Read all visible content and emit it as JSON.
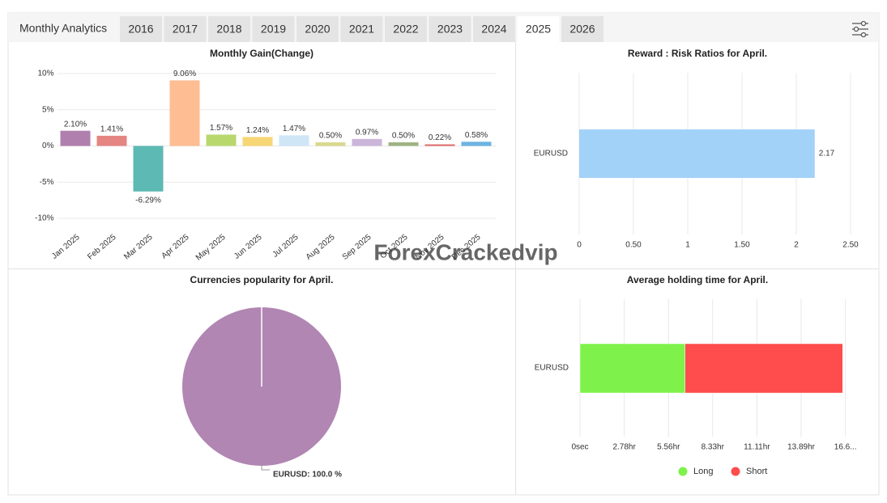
{
  "header": {
    "title": "Monthly Analytics",
    "tabs": [
      "2016",
      "2017",
      "2018",
      "2019",
      "2020",
      "2021",
      "2022",
      "2023",
      "2024",
      "2025",
      "2026"
    ],
    "selected_tab": "2025"
  },
  "watermark": "ForexCrackedvip",
  "chart_data": [
    {
      "type": "bar",
      "title": "Monthly Gain(Change)",
      "categories": [
        "Jan 2025",
        "Feb 2025",
        "Mar 2025",
        "Apr 2025",
        "May 2025",
        "Jun 2025",
        "Jul 2025",
        "Aug 2025",
        "Sep 2025",
        "Oct 2025",
        "Nov 2025",
        "Dec 2025"
      ],
      "values": [
        2.1,
        1.41,
        -6.29,
        9.06,
        1.57,
        1.24,
        1.47,
        0.5,
        0.97,
        0.5,
        0.22,
        0.58
      ],
      "value_labels": [
        "2.10%",
        "1.41%",
        "-6.29%",
        "9.06%",
        "1.57%",
        "1.24%",
        "1.47%",
        "0.50%",
        "0.97%",
        "0.50%",
        "0.22%",
        "0.58%"
      ],
      "colors": [
        "#b07fae",
        "#e58582",
        "#5db9b3",
        "#ffbd93",
        "#b8d86e",
        "#f6d675",
        "#cfe6f7",
        "#d9d98d",
        "#cbb5d9",
        "#9db381",
        "#e06868",
        "#6cb3e1"
      ],
      "ylim": [
        -10,
        10
      ],
      "yticks": [
        {
          "value": -10,
          "label": "-10%"
        },
        {
          "value": -5,
          "label": "-5%"
        },
        {
          "value": 0,
          "label": "0%"
        },
        {
          "value": 5,
          "label": "5%"
        },
        {
          "value": 10,
          "label": "10%"
        }
      ],
      "grid": true
    },
    {
      "type": "hbar",
      "title": "Reward : Risk Ratios for April.",
      "categories": [
        "EURUSD"
      ],
      "values": [
        2.17
      ],
      "color": "#a3d2f8",
      "xlim": [
        0,
        2.5
      ],
      "xticks": [
        0,
        {
          "value": 0.5,
          "label": "0.50"
        },
        1,
        {
          "value": 1.5,
          "label": "1.50"
        },
        2,
        {
          "value": 2.5,
          "label": "2.50"
        }
      ],
      "grid": true
    },
    {
      "type": "pie",
      "title": "Currencies popularity for April.",
      "categories": [
        "EURUSD"
      ],
      "values": [
        100
      ],
      "value_labels": [
        "EURUSD: 100.0 %"
      ],
      "colors": [
        "#b186b3"
      ]
    },
    {
      "type": "hbar",
      "title": "Average holding time for April.",
      "stacked": true,
      "categories": [
        "EURUSD"
      ],
      "series": [
        {
          "name": "Long",
          "color": "#7ef24a",
          "values": [
            6.6
          ]
        },
        {
          "name": "Short",
          "color": "#ff4c4c",
          "values": [
            9.9
          ]
        }
      ],
      "xlim": [
        0,
        17.5
      ],
      "xticks": [
        {
          "value": 0,
          "label": "0sec"
        },
        {
          "value": 2.78,
          "label": "2.78hr"
        },
        {
          "value": 5.56,
          "label": "5.56hr"
        },
        {
          "value": 8.33,
          "label": "8.33hr"
        },
        {
          "value": 11.11,
          "label": "11.11hr"
        },
        {
          "value": 13.89,
          "label": "13.89hr"
        },
        {
          "value": 16.67,
          "label": "16.6..."
        }
      ],
      "grid": true
    }
  ]
}
